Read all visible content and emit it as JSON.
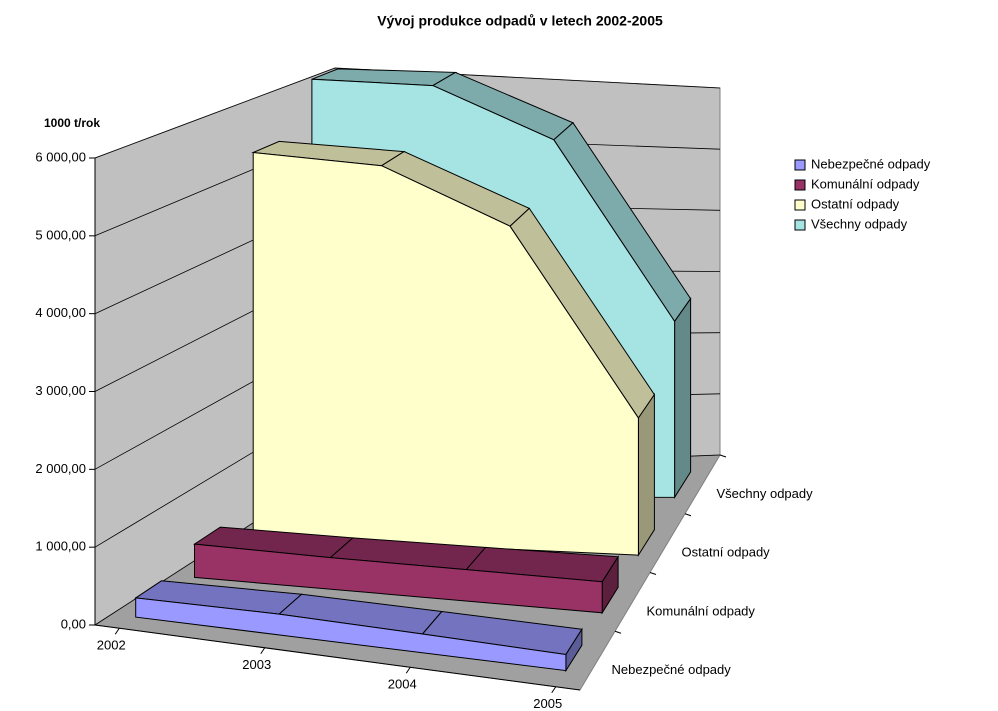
{
  "chart_data": {
    "type": "area3d",
    "title": "Vývoj produkce odpadů v letech 2002-2005",
    "y_axis_label": "1000 t/rok",
    "categories": [
      "2002",
      "2003",
      "2004",
      "2005"
    ],
    "series": [
      {
        "name": "Nebezpečné odpady",
        "color": "#9999ff",
        "values": [
          250,
          280,
          260,
          230
        ]
      },
      {
        "name": "Komunální odpady",
        "color": "#993366",
        "values": [
          450,
          440,
          450,
          460
        ]
      },
      {
        "name": "Ostatní odpady",
        "color": "#ffffcc",
        "values": [
          5400,
          5450,
          4800,
          2100
        ]
      },
      {
        "name": "Všechny odpady",
        "color": "#a6e4e4",
        "values": [
          6100,
          6170,
          5510,
          2790
        ]
      }
    ],
    "ylim": [
      0,
      6000
    ],
    "yticks": [
      {
        "value": 0,
        "label": "0,00"
      },
      {
        "value": 1000,
        "label": "1 000,00"
      },
      {
        "value": 2000,
        "label": "2 000,00"
      },
      {
        "value": 3000,
        "label": "3 000,00"
      },
      {
        "value": 4000,
        "label": "4 000,00"
      },
      {
        "value": 5000,
        "label": "5 000,00"
      },
      {
        "value": 6000,
        "label": "6 000,00"
      }
    ],
    "grid": true,
    "legend": "right"
  }
}
